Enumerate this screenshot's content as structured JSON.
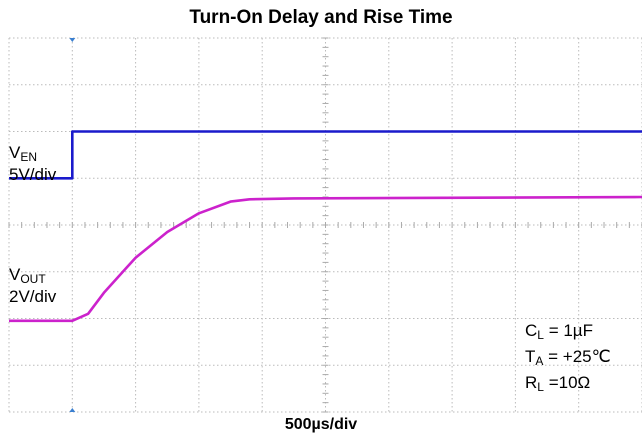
{
  "chart_data": {
    "type": "line",
    "title": "Turn-On Delay and Rise Time",
    "xlabel": "500µs/div",
    "grid": true,
    "divisions": {
      "x": 10,
      "y": 8
    },
    "x_unit": "div",
    "y_unit": "div",
    "series": [
      {
        "color": "#1a1acc",
        "x": [
          0,
          1.0,
          1.0,
          10
        ],
        "y": [
          5.0,
          5.0,
          6.0,
          6.0
        ]
      },
      {
        "color": "#cc22cc",
        "x": [
          0,
          1.0,
          1.25,
          1.5,
          2.0,
          2.5,
          3.0,
          3.5,
          3.8,
          4.5,
          10
        ],
        "y": [
          1.95,
          1.95,
          2.1,
          2.55,
          3.3,
          3.85,
          4.25,
          4.5,
          4.55,
          4.57,
          4.6
        ]
      }
    ],
    "annotations": {
      "ven_label": {
        "v": "V",
        "sub": "EN"
      },
      "ven_scale": "5V/div",
      "vout_label": {
        "v": "V",
        "sub": "OUT"
      },
      "vout_scale": "2V/div",
      "cl": {
        "v": "C",
        "sub": "L",
        "rest": " = 1µF"
      },
      "ta": {
        "v": "T",
        "sub": "A",
        "rest": " = +25℃"
      },
      "rl": {
        "v": "R",
        "sub": "L",
        "rest": " =10Ω"
      }
    }
  }
}
